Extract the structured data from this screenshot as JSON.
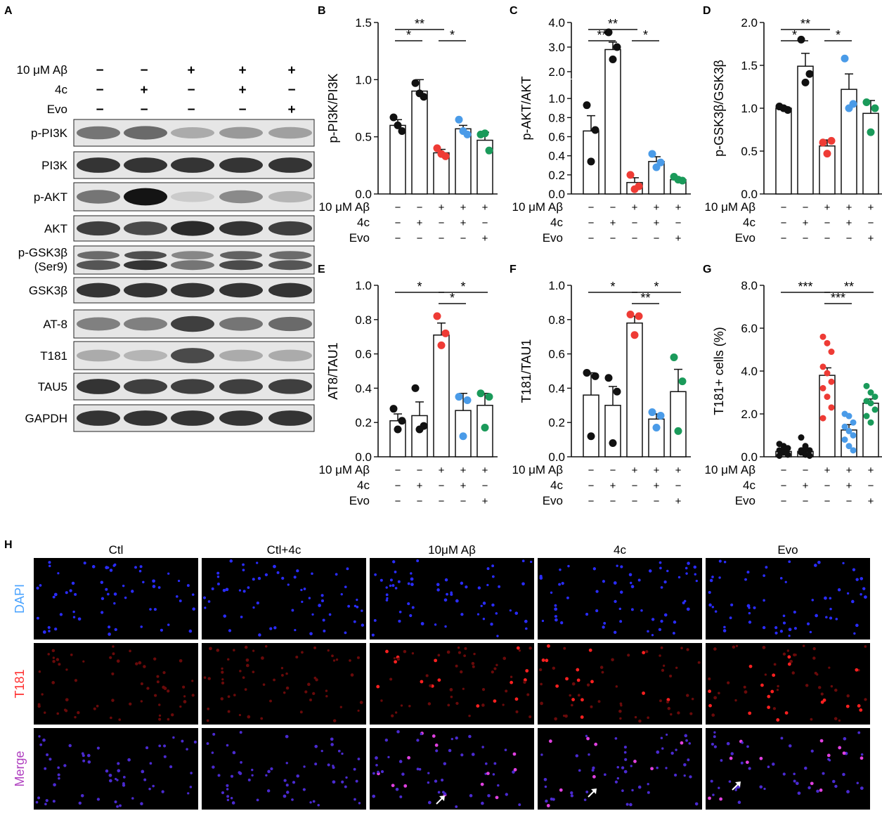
{
  "panel_labels": {
    "A": "A",
    "B": "B",
    "C": "C",
    "D": "D",
    "E": "E",
    "F": "F",
    "G": "G",
    "H": "H"
  },
  "western": {
    "conditions": [
      {
        "label": "10 μM Aβ",
        "signs": [
          "−",
          "−",
          "+",
          "+",
          "+"
        ]
      },
      {
        "label": "4c",
        "signs": [
          "−",
          "+",
          "−",
          "+",
          "−"
        ]
      },
      {
        "label": "Evo",
        "signs": [
          "−",
          "−",
          "−",
          "−",
          "+"
        ]
      }
    ],
    "bands": [
      {
        "label": "p-PI3K",
        "intensity": [
          0.55,
          0.6,
          0.3,
          0.38,
          0.35
        ]
      },
      {
        "label": "PI3K",
        "intensity": [
          0.85,
          0.85,
          0.85,
          0.85,
          0.85
        ]
      },
      {
        "label": "p-AKT",
        "intensity": [
          0.55,
          1.0,
          0.15,
          0.45,
          0.25
        ]
      },
      {
        "label": "AKT",
        "intensity": [
          0.8,
          0.75,
          0.9,
          0.85,
          0.8
        ]
      },
      {
        "label": "p-GSK3β",
        "sublabel": "(Ser9)",
        "intensity": [
          0.7,
          0.85,
          0.55,
          0.75,
          0.7
        ],
        "double": true
      },
      {
        "label": "GSK3β",
        "intensity": [
          0.85,
          0.85,
          0.85,
          0.85,
          0.85
        ]
      },
      {
        "label": "AT-8",
        "intensity": [
          0.5,
          0.5,
          0.8,
          0.55,
          0.6
        ]
      },
      {
        "label": "T181",
        "intensity": [
          0.3,
          0.25,
          0.75,
          0.3,
          0.3
        ]
      },
      {
        "label": "TAU5",
        "intensity": [
          0.85,
          0.8,
          0.8,
          0.8,
          0.8
        ]
      },
      {
        "label": "GAPDH",
        "intensity": [
          0.85,
          0.85,
          0.85,
          0.85,
          0.85
        ]
      }
    ]
  },
  "condition_labels": [
    "10 μM Aβ",
    "4c",
    "Evo"
  ],
  "condition_signs": [
    [
      "−",
      "−",
      "+",
      "+",
      "+"
    ],
    [
      "−",
      "+",
      "−",
      "+",
      "−"
    ],
    [
      "−",
      "−",
      "−",
      "−",
      "+"
    ]
  ],
  "colors": {
    "black": "#111111",
    "red": "#ee3b35",
    "blue": "#4a9be8",
    "green": "#1a9a5a"
  },
  "chart_data": [
    {
      "id": "B",
      "type": "bar",
      "ylabel": "p-PI3K/PI3K",
      "ylim": [
        0,
        1.5
      ],
      "yticks": [
        "0.0",
        "0.5",
        "1.0",
        "1.5"
      ],
      "values": [
        0.6,
        0.9,
        0.36,
        0.57,
        0.47
      ],
      "errors": [
        0.05,
        0.1,
        0.03,
        0.03,
        0.07
      ],
      "points": [
        [
          0.67,
          0.55,
          0.6
        ],
        [
          0.97,
          0.85,
          0.88
        ],
        [
          0.4,
          0.33,
          0.35
        ],
        [
          0.65,
          0.52,
          0.55
        ],
        [
          0.52,
          0.38,
          0.53
        ]
      ],
      "sig": [
        {
          "from": 0,
          "to": 1,
          "text": "*"
        },
        {
          "from": 0,
          "to": 2,
          "text": "**"
        },
        {
          "from": 2,
          "to": 3,
          "text": "*"
        }
      ]
    },
    {
      "id": "C",
      "type": "bar",
      "ylabel": "p-AKT/AKT",
      "ylim": [
        0,
        4.0
      ],
      "yticks": [
        "0.0",
        "0.2",
        "0.4",
        "0.6",
        "0.8",
        "1.0",
        "2.0",
        "3.0",
        "4.0"
      ],
      "broken_axis": true,
      "values": [
        0.66,
        2.9,
        0.12,
        0.34,
        0.15
      ],
      "errors": [
        0.16,
        0.3,
        0.05,
        0.05,
        0.02
      ],
      "points": [
        [
          0.93,
          0.67,
          0.34
        ],
        [
          3.6,
          3.0,
          2.5
        ],
        [
          0.2,
          0.08,
          0.05
        ],
        [
          0.42,
          0.33,
          0.28
        ],
        [
          0.18,
          0.14,
          0.15
        ]
      ],
      "sig": [
        {
          "from": 0,
          "to": 1,
          "text": "**"
        },
        {
          "from": 0,
          "to": 2,
          "text": "**"
        },
        {
          "from": 2,
          "to": 3,
          "text": "*"
        }
      ]
    },
    {
      "id": "D",
      "type": "bar",
      "ylabel": "p-GSK3β/GSK3β",
      "ylim": [
        0,
        2.0
      ],
      "yticks": [
        "0.0",
        "0.5",
        "1.0",
        "1.5",
        "2.0"
      ],
      "values": [
        1.0,
        1.49,
        0.56,
        1.22,
        0.94
      ],
      "errors": [
        0.02,
        0.15,
        0.07,
        0.18,
        0.15
      ],
      "points": [
        [
          1.02,
          0.98,
          1.0
        ],
        [
          1.8,
          1.4,
          1.3
        ],
        [
          0.6,
          0.62,
          0.47
        ],
        [
          1.58,
          1.05,
          1.0
        ],
        [
          1.07,
          1.0,
          0.72
        ]
      ],
      "sig": [
        {
          "from": 0,
          "to": 1,
          "text": "*"
        },
        {
          "from": 0,
          "to": 2,
          "text": "**"
        },
        {
          "from": 2,
          "to": 3,
          "text": "*"
        }
      ]
    },
    {
      "id": "E",
      "type": "bar",
      "ylabel": "AT8/TAU1",
      "ylim": [
        0,
        1.0
      ],
      "yticks": [
        "0.0",
        "0.2",
        "0.4",
        "0.6",
        "0.8",
        "1.0"
      ],
      "values": [
        0.21,
        0.24,
        0.71,
        0.27,
        0.3
      ],
      "errors": [
        0.04,
        0.08,
        0.07,
        0.1,
        0.07
      ],
      "points": [
        [
          0.28,
          0.21,
          0.16
        ],
        [
          0.4,
          0.18,
          0.16
        ],
        [
          0.82,
          0.72,
          0.65
        ],
        [
          0.35,
          0.33,
          0.12
        ],
        [
          0.37,
          0.35,
          0.17
        ]
      ],
      "sig": [
        {
          "from": 0,
          "to": 2,
          "text": "*"
        },
        {
          "from": 2,
          "to": 3,
          "text": "*"
        },
        {
          "from": 2,
          "to": 4,
          "text": "*"
        }
      ]
    },
    {
      "id": "F",
      "type": "bar",
      "ylabel": "T181/TAU1",
      "ylim": [
        0,
        1.0
      ],
      "yticks": [
        "0.0",
        "0.2",
        "0.4",
        "0.6",
        "0.8",
        "1.0"
      ],
      "values": [
        0.36,
        0.3,
        0.78,
        0.22,
        0.38
      ],
      "errors": [
        0.13,
        0.11,
        0.04,
        0.03,
        0.13
      ],
      "points": [
        [
          0.49,
          0.47,
          0.12
        ],
        [
          0.46,
          0.38,
          0.08
        ],
        [
          0.83,
          0.82,
          0.71
        ],
        [
          0.26,
          0.24,
          0.17
        ],
        [
          0.58,
          0.44,
          0.15
        ]
      ],
      "sig": [
        {
          "from": 0,
          "to": 2,
          "text": "*"
        },
        {
          "from": 2,
          "to": 3,
          "text": "**"
        },
        {
          "from": 2,
          "to": 4,
          "text": "*"
        }
      ]
    },
    {
      "id": "G",
      "type": "bar",
      "ylabel": "T181+ cells (%)",
      "ylim": [
        0,
        8.0
      ],
      "yticks": [
        "0.0",
        "2.0",
        "4.0",
        "6.0",
        "8.0"
      ],
      "values": [
        0.25,
        0.25,
        3.8,
        1.25,
        2.5
      ],
      "errors": [
        0.1,
        0.1,
        0.35,
        0.25,
        0.2
      ],
      "points": [
        [
          0.6,
          0.5,
          0.4,
          0.3,
          0.2,
          0.1,
          0.05,
          0.2
        ],
        [
          0.9,
          0.5,
          0.3,
          0.2,
          0.1,
          0.05,
          0.3,
          0.4
        ],
        [
          5.6,
          5.3,
          4.9,
          4.2,
          3.9,
          3.5,
          3.2,
          2.8,
          2.3,
          1.8
        ],
        [
          2.0,
          1.9,
          1.6,
          1.4,
          1.2,
          1.0,
          0.8,
          0.5,
          0.3
        ],
        [
          3.3,
          3.0,
          2.8,
          2.6,
          2.5,
          2.2,
          1.9,
          1.6
        ]
      ],
      "sig": [
        {
          "from": 0,
          "to": 2,
          "text": "***"
        },
        {
          "from": 2,
          "to": 3,
          "text": "***"
        },
        {
          "from": 2,
          "to": 4,
          "text": "**"
        }
      ]
    }
  ],
  "microscopy": {
    "columns": [
      "Ctl",
      "Ctl+4c",
      "10μM Aβ",
      "4c",
      "Evo"
    ],
    "rows": [
      {
        "label": "DAPI",
        "color": "#4aa3ff"
      },
      {
        "label": "T181",
        "color": "#ff3030"
      },
      {
        "label": "Merge",
        "color": "#b040c0"
      }
    ]
  }
}
